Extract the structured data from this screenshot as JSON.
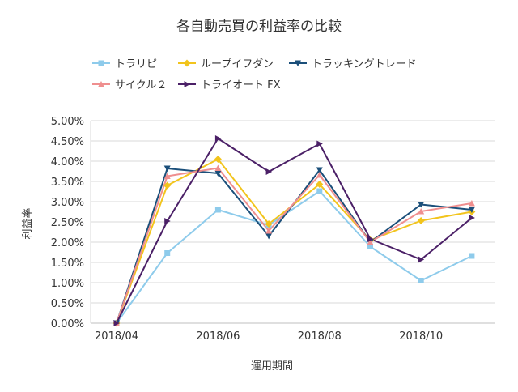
{
  "chart_data": {
    "type": "line",
    "title": "各自動売買の利益率の比較",
    "xlabel": "運用期間",
    "ylabel": "利益率",
    "ylim": [
      0,
      0.05
    ],
    "y_ticks": [
      "0.00%",
      "0.50%",
      "1.00%",
      "1.50%",
      "2.00%",
      "2.50%",
      "3.00%",
      "3.50%",
      "4.00%",
      "4.50%",
      "5.00%"
    ],
    "x": [
      "2018/04",
      "2018/05",
      "2018/06",
      "2018/07",
      "2018/08",
      "2018/09",
      "2018/10",
      "2018/11"
    ],
    "x_tick_labels": [
      "2018/04",
      "2018/06",
      "2018/08",
      "2018/10"
    ],
    "legend_position": "top",
    "grid": "horizontal",
    "series": [
      {
        "name": "トラリピ",
        "color": "#8ecbeb",
        "marker": "square",
        "values": [
          0.0,
          0.0173,
          0.028,
          0.0242,
          0.0326,
          0.0189,
          0.0105,
          0.0166
        ]
      },
      {
        "name": "ループイフダン",
        "color": "#f2c41c",
        "marker": "diamond",
        "values": [
          0.0,
          0.034,
          0.0405,
          0.0245,
          0.0343,
          0.0205,
          0.0253,
          0.0275
        ]
      },
      {
        "name": "トラッキングトレード",
        "color": "#1b4f7a",
        "marker": "triangle-down",
        "values": [
          0.0,
          0.0382,
          0.037,
          0.0215,
          0.0378,
          0.02,
          0.0293,
          0.028
        ]
      },
      {
        "name": "サイクル２",
        "color": "#ef8f8f",
        "marker": "triangle-up",
        "values": [
          0.0,
          0.0363,
          0.0383,
          0.0228,
          0.0366,
          0.02,
          0.0276,
          0.0296
        ]
      },
      {
        "name": "トライオート FX",
        "color": "#4b2067",
        "marker": "triangle-right",
        "values": [
          0.0,
          0.0252,
          0.0456,
          0.0374,
          0.0443,
          0.0208,
          0.0157,
          0.026
        ]
      }
    ]
  }
}
